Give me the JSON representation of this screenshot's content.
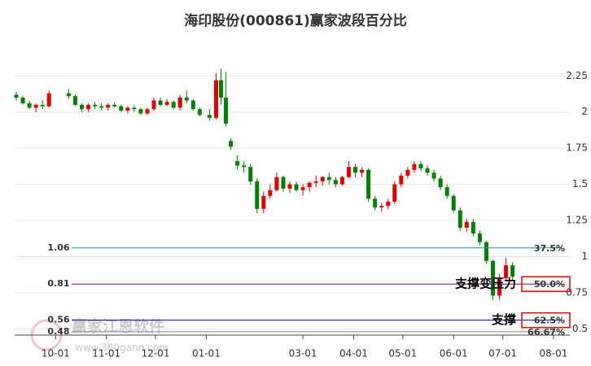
{
  "chart_data": {
    "type": "candlestick",
    "title": "海印股份(000861)赢家波段百分比",
    "watermark": [
      "赢家江恩软件",
      "www.360gann.com"
    ],
    "up_color": "#e00000",
    "down_color": "#008000",
    "grid": true,
    "xlim": [
      "09-06",
      "08-06"
    ],
    "xticks": [
      "10-01",
      "11-01",
      "12-01",
      "01-01",
      "03-01",
      "04-01",
      "05-01",
      "06-01",
      "07-01",
      "08-01"
    ],
    "ylim": [
      0.44,
      2.55
    ],
    "yticks": [
      0.5,
      0.75,
      1,
      1.25,
      1.5,
      1.75,
      2,
      2.25
    ],
    "x": [
      "09-07",
      "09-11",
      "09-15",
      "09-19",
      "09-23",
      "09-27",
      "10-09",
      "10-13",
      "10-17",
      "10-21",
      "10-25",
      "10-29",
      "11-02",
      "11-06",
      "11-10",
      "11-14",
      "11-18",
      "11-22",
      "11-26",
      "11-30",
      "12-04",
      "12-08",
      "12-12",
      "12-16",
      "12-20",
      "12-24",
      "12-28",
      "01-03",
      "01-07",
      "01-10",
      "01-13",
      "01-16",
      "01-20",
      "01-24",
      "01-28",
      "02-01",
      "02-05",
      "02-09",
      "02-13",
      "02-17",
      "02-21",
      "02-25",
      "03-01",
      "03-05",
      "03-09",
      "03-13",
      "03-17",
      "03-21",
      "03-25",
      "03-29",
      "04-02",
      "04-06",
      "04-10",
      "04-14",
      "04-18",
      "04-22",
      "04-26",
      "04-30",
      "05-04",
      "05-08",
      "05-12",
      "05-16",
      "05-20",
      "05-24",
      "05-28",
      "06-01",
      "06-05",
      "06-09",
      "06-13",
      "06-17",
      "06-21",
      "06-25",
      "06-29",
      "07-03",
      "07-07"
    ],
    "open": [
      2.12,
      2.1,
      2.06,
      2.03,
      2.05,
      2.04,
      2.13,
      2.11,
      2.05,
      2.02,
      2.05,
      2.04,
      2.03,
      2.05,
      2.04,
      2.01,
      2.03,
      2.02,
      1.99,
      2.02,
      2.08,
      2.05,
      2.07,
      2.03,
      2.1,
      2.08,
      2.02,
      1.98,
      1.96,
      2.22,
      2.1,
      1.8,
      1.66,
      1.63,
      1.62,
      1.52,
      1.33,
      1.42,
      1.46,
      1.55,
      1.47,
      1.5,
      1.46,
      1.48,
      1.51,
      1.52,
      1.55,
      1.53,
      1.5,
      1.55,
      1.62,
      1.58,
      1.6,
      1.4,
      1.34,
      1.35,
      1.38,
      1.5,
      1.56,
      1.6,
      1.64,
      1.61,
      1.58,
      1.54,
      1.48,
      1.42,
      1.32,
      1.2,
      1.24,
      1.16,
      1.1,
      0.97,
      0.73,
      0.85,
      0.94
    ],
    "high": [
      2.14,
      2.11,
      2.08,
      2.06,
      2.08,
      2.15,
      2.16,
      2.12,
      2.06,
      2.06,
      2.07,
      2.06,
      2.06,
      2.07,
      2.05,
      2.04,
      2.05,
      2.03,
      2.03,
      2.1,
      2.1,
      2.09,
      2.08,
      2.12,
      2.15,
      2.09,
      2.03,
      2.02,
      2.27,
      2.3,
      2.28,
      1.82,
      1.7,
      1.66,
      1.64,
      1.54,
      1.45,
      1.5,
      1.58,
      1.56,
      1.52,
      1.52,
      1.5,
      1.52,
      1.56,
      1.56,
      1.58,
      1.55,
      1.56,
      1.66,
      1.64,
      1.62,
      1.61,
      1.42,
      1.37,
      1.4,
      1.52,
      1.58,
      1.62,
      1.66,
      1.66,
      1.63,
      1.6,
      1.56,
      1.5,
      1.43,
      1.34,
      1.26,
      1.26,
      1.18,
      1.11,
      0.98,
      0.88,
      0.99,
      0.96
    ],
    "low": [
      2.08,
      2.05,
      2.02,
      2.0,
      2.02,
      2.03,
      2.09,
      2.04,
      2.0,
      2.0,
      2.02,
      2.01,
      2.01,
      2.03,
      2.0,
      1.99,
      2.0,
      1.98,
      1.98,
      2.01,
      2.04,
      2.04,
      2.02,
      2.01,
      2.06,
      2.01,
      1.97,
      1.94,
      1.95,
      2.05,
      1.9,
      1.74,
      1.6,
      1.58,
      1.5,
      1.3,
      1.3,
      1.4,
      1.45,
      1.45,
      1.44,
      1.45,
      1.42,
      1.45,
      1.48,
      1.49,
      1.5,
      1.48,
      1.49,
      1.54,
      1.55,
      1.55,
      1.38,
      1.32,
      1.31,
      1.33,
      1.36,
      1.48,
      1.54,
      1.58,
      1.59,
      1.56,
      1.52,
      1.46,
      1.4,
      1.3,
      1.18,
      1.17,
      1.14,
      1.08,
      0.95,
      0.7,
      0.7,
      0.83,
      0.84
    ],
    "close": [
      2.1,
      2.06,
      2.03,
      2.05,
      2.04,
      2.13,
      2.11,
      2.05,
      2.02,
      2.05,
      2.04,
      2.03,
      2.05,
      2.04,
      2.01,
      2.03,
      2.02,
      1.99,
      2.02,
      2.08,
      2.05,
      2.07,
      2.03,
      2.1,
      2.08,
      2.02,
      1.98,
      1.96,
      2.22,
      2.1,
      1.92,
      1.76,
      1.63,
      1.62,
      1.52,
      1.33,
      1.42,
      1.46,
      1.55,
      1.47,
      1.5,
      1.46,
      1.48,
      1.51,
      1.52,
      1.55,
      1.53,
      1.5,
      1.55,
      1.62,
      1.58,
      1.6,
      1.4,
      1.34,
      1.35,
      1.38,
      1.5,
      1.56,
      1.6,
      1.64,
      1.61,
      1.58,
      1.54,
      1.48,
      1.42,
      1.32,
      1.2,
      1.24,
      1.16,
      1.1,
      0.97,
      0.73,
      0.85,
      0.94,
      0.86
    ],
    "levels": [
      {
        "value": 1.06,
        "percent": "37.5%",
        "color": "#1a9696"
      },
      {
        "value": 0.81,
        "percent": "50.0%",
        "color": "#800080",
        "note": "支撑变压力",
        "boxed": true
      },
      {
        "value": 0.56,
        "percent": "62.5%",
        "color": "#0000a0",
        "note": "支撑",
        "boxed": true
      },
      {
        "value": 0.48,
        "percent": "66.67%",
        "color": "#888888"
      }
    ]
  }
}
